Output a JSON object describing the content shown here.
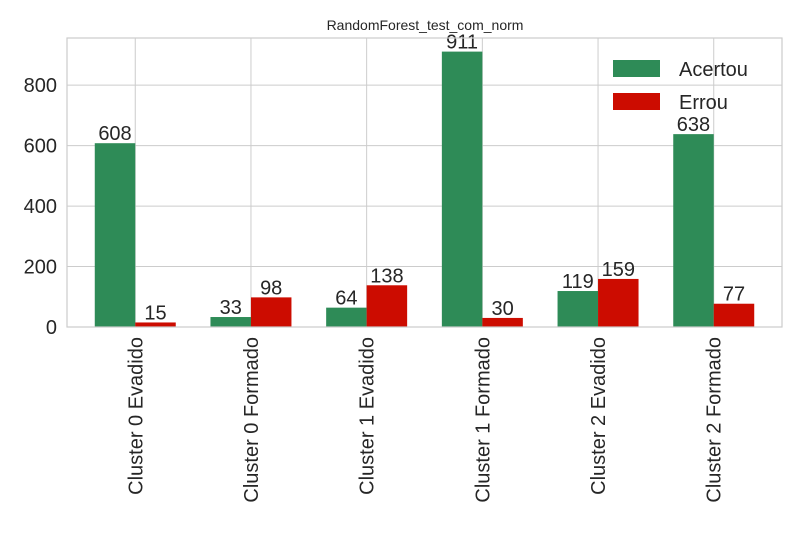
{
  "chart_data": {
    "type": "bar",
    "title": "RandomForest_test_com_norm",
    "xlabel": "",
    "ylabel": "",
    "categories": [
      "Cluster 0 Evadido",
      "Cluster 0 Formado",
      "Cluster 1 Evadido",
      "Cluster 1 Formado",
      "Cluster 2 Evadido",
      "Cluster 2 Formado"
    ],
    "series": [
      {
        "name": "Acertou",
        "color": "#2e8b57",
        "values": [
          608,
          33,
          64,
          911,
          119,
          638
        ]
      },
      {
        "name": "Errou",
        "color": "#cc0c00",
        "values": [
          15,
          98,
          138,
          30,
          159,
          77
        ]
      }
    ],
    "ylim": [
      0,
      956
    ],
    "yticks": [
      0,
      200,
      400,
      600,
      800
    ],
    "grid": true,
    "legend_position": "top-right"
  }
}
